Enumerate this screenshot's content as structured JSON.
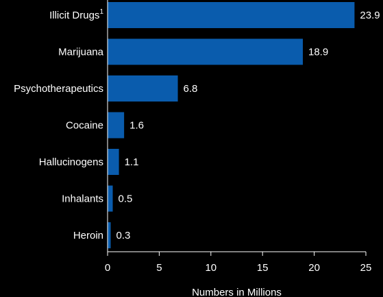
{
  "colors": {
    "background": "#000000",
    "bar": "#0a5cad",
    "text": "#ffffff",
    "axis": "#ffffff"
  },
  "chart_data": {
    "type": "bar",
    "orientation": "horizontal",
    "categories": [
      {
        "label": "Illicit Drugs",
        "superscript": "1"
      },
      {
        "label": "Marijuana",
        "superscript": ""
      },
      {
        "label": "Psychotherapeutics",
        "superscript": ""
      },
      {
        "label": "Cocaine",
        "superscript": ""
      },
      {
        "label": "Hallucinogens",
        "superscript": ""
      },
      {
        "label": "Inhalants",
        "superscript": ""
      },
      {
        "label": "Heroin",
        "superscript": ""
      }
    ],
    "values": [
      23.9,
      18.9,
      6.8,
      1.6,
      1.1,
      0.5,
      0.3
    ],
    "value_labels": [
      "23.9",
      "18.9",
      "6.8",
      "1.6",
      "1.1",
      "0.5",
      "0.3"
    ],
    "xlim": [
      0,
      25
    ],
    "xticks": [
      0,
      5,
      10,
      15,
      20,
      25
    ],
    "xlabel": "Numbers in Millions",
    "grid": false
  }
}
